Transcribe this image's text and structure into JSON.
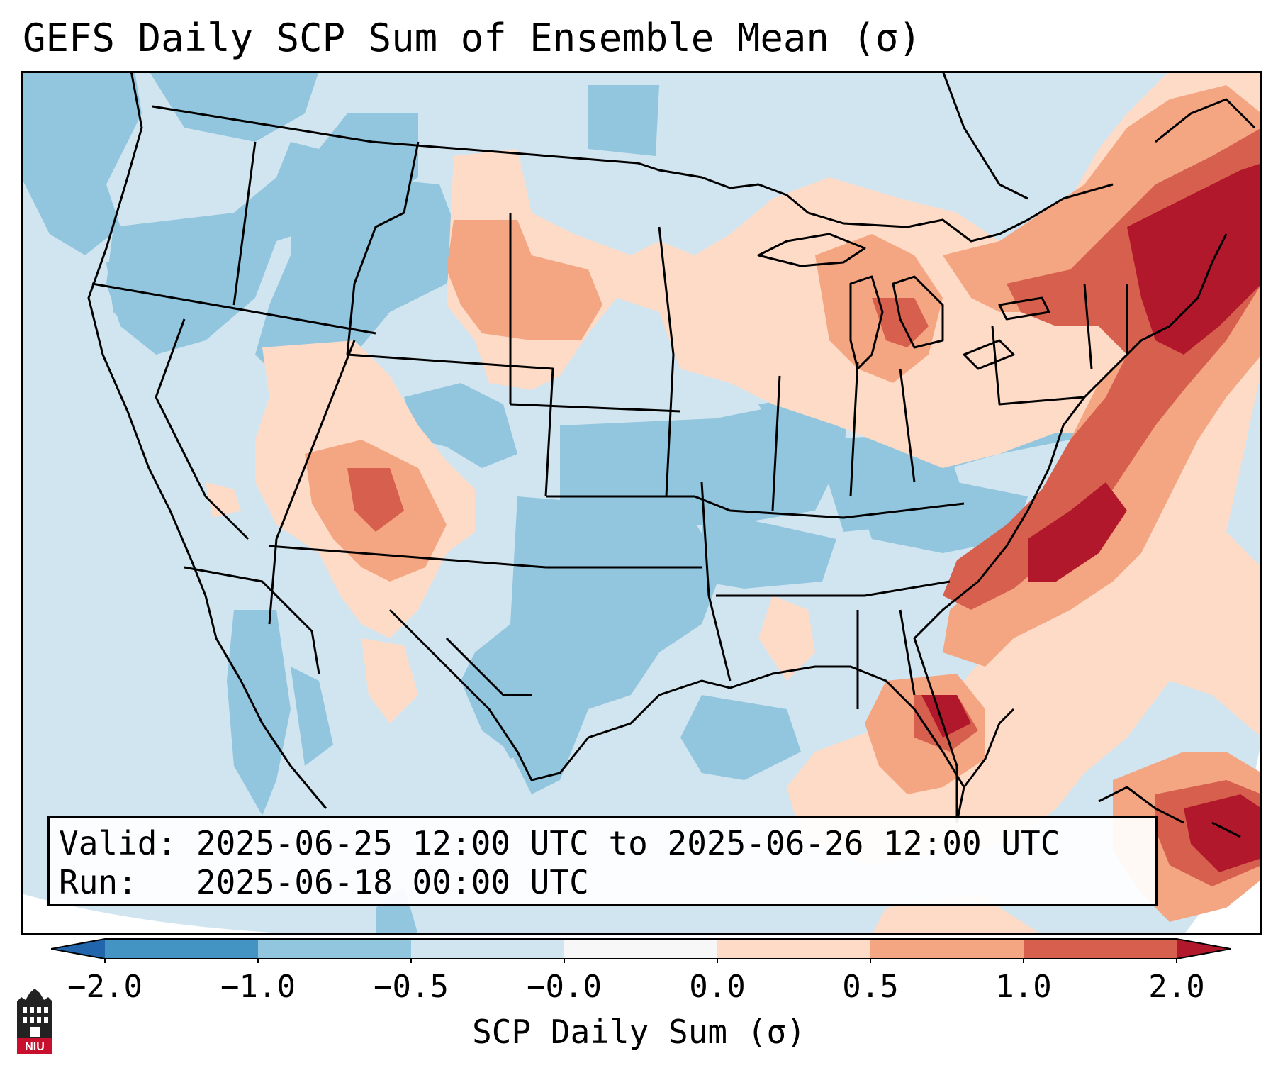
{
  "title": "GEFS Daily SCP Sum of Ensemble Mean (σ)",
  "info": {
    "valid_label": "Valid:",
    "valid_value": "2025-06-25 12:00 UTC to 2025-06-26 12:00 UTC",
    "run_label": "Run:",
    "run_value": "2025-06-18 00:00 UTC"
  },
  "colorbar": {
    "label": "SCP Daily Sum (σ)",
    "ticks": [
      "−2.0",
      "−1.0",
      "−0.5",
      "−0.0",
      "0.0",
      "0.5",
      "1.0",
      "2.0"
    ],
    "colors": [
      "#4393c3",
      "#92c5de",
      "#d1e5f0",
      "#f7f7f7",
      "#fddbc7",
      "#f4a582",
      "#d6604d",
      "#b2182b"
    ],
    "extend_low_color": "#2166ac",
    "extend_high_color": "#b2182b"
  },
  "logo": {
    "text": "NIU"
  }
}
